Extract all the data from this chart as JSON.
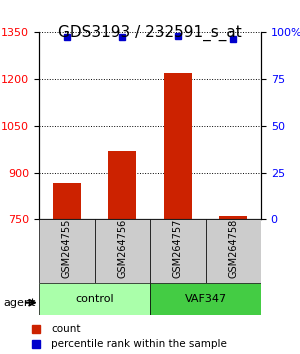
{
  "title": "GDS3193 / 232591_s_at",
  "samples": [
    "GSM264755",
    "GSM264756",
    "GSM264757",
    "GSM264758"
  ],
  "counts": [
    868,
    968,
    1218,
    762
  ],
  "percentile_ranks": [
    97,
    97,
    98,
    96
  ],
  "ylim_left": [
    750,
    1350
  ],
  "ylim_right": [
    0,
    100
  ],
  "yticks_left": [
    750,
    900,
    1050,
    1200,
    1350
  ],
  "yticks_right": [
    0,
    25,
    50,
    75,
    100
  ],
  "bar_color": "#cc2200",
  "dot_color": "#0000cc",
  "groups": [
    {
      "label": "control",
      "samples": [
        0,
        1
      ],
      "color": "#aaffaa"
    },
    {
      "label": "VAF347",
      "samples": [
        2,
        3
      ],
      "color": "#44cc44"
    }
  ],
  "agent_label": "agent",
  "legend_count_label": "count",
  "legend_pct_label": "percentile rank within the sample",
  "grid_color": "#000000",
  "sample_box_color": "#cccccc",
  "title_fontsize": 11,
  "axis_fontsize": 9,
  "tick_fontsize": 8
}
